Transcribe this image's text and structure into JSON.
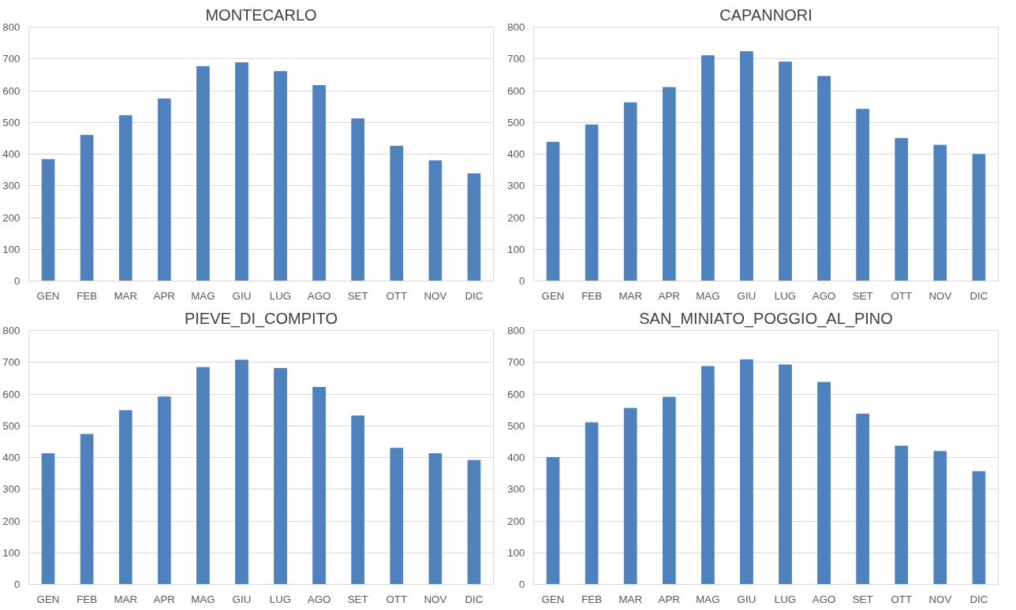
{
  "chart_data": [
    {
      "type": "bar",
      "title": "MONTECARLO",
      "categories": [
        "GEN",
        "FEB",
        "MAR",
        "APR",
        "MAG",
        "GIU",
        "LUG",
        "AGO",
        "SET",
        "OTT",
        "NOV",
        "DIC"
      ],
      "values": [
        383,
        459,
        521,
        574,
        676,
        688,
        660,
        616,
        511,
        425,
        379,
        338
      ],
      "color": "#4f81bd",
      "ylim": [
        0,
        800
      ],
      "yticks": [
        0,
        100,
        200,
        300,
        400,
        500,
        600,
        700,
        800
      ],
      "grid": "y"
    },
    {
      "type": "bar",
      "title": "CAPANNORI",
      "categories": [
        "GEN",
        "FEB",
        "MAR",
        "APR",
        "MAG",
        "GIU",
        "LUG",
        "AGO",
        "SET",
        "OTT",
        "NOV",
        "DIC"
      ],
      "values": [
        437,
        492,
        562,
        610,
        710,
        723,
        690,
        645,
        541,
        449,
        428,
        399
      ],
      "color": "#4f81bd",
      "ylim": [
        0,
        800
      ],
      "yticks": [
        0,
        100,
        200,
        300,
        400,
        500,
        600,
        700,
        800
      ],
      "grid": "y"
    },
    {
      "type": "bar",
      "title": "PIEVE_DI_COMPITO",
      "categories": [
        "GEN",
        "FEB",
        "MAR",
        "APR",
        "MAG",
        "GIU",
        "LUG",
        "AGO",
        "SET",
        "OTT",
        "NOV",
        "DIC"
      ],
      "values": [
        412,
        473,
        548,
        591,
        684,
        707,
        681,
        621,
        531,
        429,
        412,
        391
      ],
      "color": "#4f81bd",
      "ylim": [
        0,
        800
      ],
      "yticks": [
        0,
        100,
        200,
        300,
        400,
        500,
        600,
        700,
        800
      ],
      "grid": "y"
    },
    {
      "type": "bar",
      "title": "SAN_MINIATO_POGGIO_AL_PINO",
      "categories": [
        "GEN",
        "FEB",
        "MAR",
        "APR",
        "MAG",
        "GIU",
        "LUG",
        "AGO",
        "SET",
        "OTT",
        "NOV",
        "DIC"
      ],
      "values": [
        400,
        510,
        555,
        590,
        687,
        708,
        692,
        637,
        537,
        436,
        419,
        356
      ],
      "color": "#4f81bd",
      "ylim": [
        0,
        800
      ],
      "yticks": [
        0,
        100,
        200,
        300,
        400,
        500,
        600,
        700,
        800
      ],
      "grid": "y"
    }
  ]
}
